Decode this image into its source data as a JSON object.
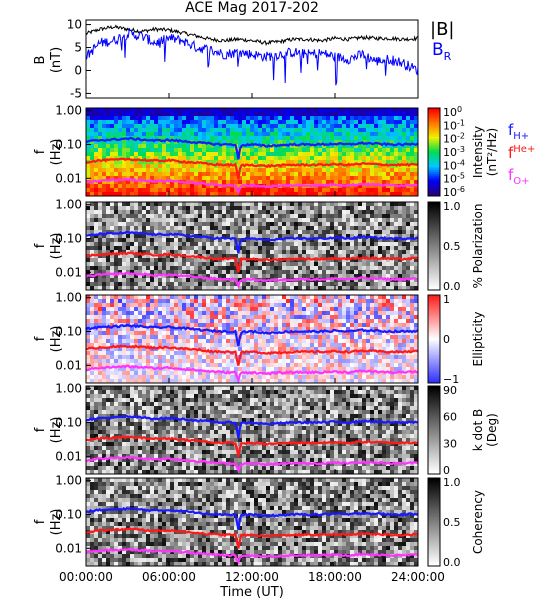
{
  "title": "ACE Mag 2017-202",
  "x_axis": {
    "label": "Time (UT)",
    "ticks": [
      "00:00:00",
      "06:00:00",
      "12:00:00",
      "18:00:00",
      "24:00:00"
    ],
    "range_hours": [
      0,
      24
    ]
  },
  "colors": {
    "fHp": "#1a1aff",
    "fHep": "#ff1a1a",
    "fOp": "#ff33ff",
    "B": "#000000",
    "BR": "#0000ff"
  },
  "freq_legend": {
    "fHp_main": "f",
    "fHp_sub": "H+",
    "fHep_main": "f",
    "fHep_sup": "He+",
    "fOp_main": "f",
    "fOp_sub": "O+"
  },
  "chart_data": [
    {
      "type": "line",
      "panel": "magnetic field",
      "ylabel": "B",
      "yunit": "(nT)",
      "ylim": [
        -6,
        11
      ],
      "yticks": [
        "10",
        "5",
        "0",
        "-5"
      ],
      "legend": {
        "B_label": "|B|",
        "BR_main": "B",
        "BR_sub": "R"
      },
      "x_hours": [
        0,
        1,
        2,
        3,
        4,
        5,
        6,
        7,
        8,
        9,
        10,
        11,
        12,
        13,
        14,
        15,
        16,
        17,
        18,
        19,
        20,
        21,
        22,
        23,
        24
      ],
      "series": [
        {
          "name": "|B|",
          "values": [
            8.0,
            9.0,
            9.5,
            9.0,
            8.5,
            9.0,
            8.8,
            8.2,
            7.5,
            6.8,
            6.5,
            6.8,
            6.5,
            6.0,
            6.3,
            6.8,
            6.8,
            6.5,
            7.0,
            6.8,
            7.2,
            7.0,
            7.0,
            6.8,
            7.0
          ]
        },
        {
          "name": "B_R",
          "values": [
            3.0,
            6.0,
            6.5,
            8.0,
            7.5,
            6.0,
            7.0,
            6.5,
            5.0,
            4.5,
            3.5,
            4.0,
            3.5,
            3.0,
            3.5,
            4.0,
            3.5,
            3.8,
            3.0,
            2.5,
            3.5,
            2.0,
            2.5,
            1.5,
            0.0
          ]
        }
      ]
    },
    {
      "type": "heatmap",
      "panel": "intensity spectrogram",
      "ylabel": "f",
      "yunit": "(Hz)",
      "yscale": "log",
      "ylim": [
        0.003,
        1.2
      ],
      "yticks": [
        "1.00",
        "0.10",
        "0.01"
      ],
      "colorbar": {
        "label": "Intensity",
        "unit": "(nT²/Hz)",
        "scale": "log",
        "ticks": [
          [
            "10",
            "0"
          ],
          [
            "10",
            "-1"
          ],
          [
            "10",
            "-2"
          ],
          [
            "10",
            "-3"
          ],
          [
            "10",
            "-4"
          ],
          [
            "10",
            "-5"
          ],
          [
            "10",
            "-6"
          ]
        ],
        "colormap": "rainbow"
      }
    },
    {
      "type": "heatmap",
      "panel": "polarization",
      "ylabel": "f",
      "yunit": "(Hz)",
      "yscale": "log",
      "ylim": [
        0.003,
        1.2
      ],
      "yticks": [
        "1.00",
        "0.10",
        "0.01"
      ],
      "colorbar": {
        "label": "% Polarization",
        "range": [
          0,
          1
        ],
        "ticks": [
          "1.0",
          "0.5",
          "0.0"
        ],
        "colormap": "gray"
      }
    },
    {
      "type": "heatmap",
      "panel": "ellipticity",
      "ylabel": "f",
      "yunit": "(Hz)",
      "yscale": "log",
      "ylim": [
        0.003,
        1.2
      ],
      "yticks": [
        "1.00",
        "0.10",
        "0.01"
      ],
      "colorbar": {
        "label": "Ellipticity",
        "range": [
          -1,
          1
        ],
        "ticks": [
          "1",
          "0",
          "−1"
        ],
        "colormap": "blue-white-red"
      }
    },
    {
      "type": "heatmap",
      "panel": "wave normal angle",
      "ylabel": "f",
      "yunit": "(Hz)",
      "yscale": "log",
      "ylim": [
        0.003,
        1.2
      ],
      "yticks": [
        "1.00",
        "0.10",
        "0.01"
      ],
      "colorbar": {
        "label": "k dot B",
        "unit": "(Deg)",
        "range": [
          0,
          90
        ],
        "ticks": [
          "90",
          "60",
          "30",
          "0"
        ],
        "colormap": "gray"
      }
    },
    {
      "type": "heatmap",
      "panel": "coherency",
      "ylabel": "f",
      "yunit": "(Hz)",
      "yscale": "log",
      "ylim": [
        0.003,
        1.2
      ],
      "yticks": [
        "1.00",
        "0.10",
        "0.01"
      ],
      "colorbar": {
        "label": "Coherency",
        "range": [
          0,
          1
        ],
        "ticks": [
          "1.0",
          "0.5",
          "0.0"
        ],
        "colormap": "gray"
      }
    }
  ],
  "gyrofrequency_lines": {
    "x_hours": [
      0,
      1,
      2,
      3,
      4,
      5,
      6,
      7,
      8,
      9,
      10,
      10.8,
      11,
      11.2,
      12,
      13,
      14,
      15,
      16,
      17,
      18,
      19,
      20,
      21,
      22,
      23,
      24
    ],
    "fHp_hz": [
      0.12,
      0.135,
      0.14,
      0.15,
      0.14,
      0.13,
      0.135,
      0.125,
      0.115,
      0.105,
      0.1,
      0.1,
      0.03,
      0.095,
      0.1,
      0.09,
      0.095,
      0.1,
      0.1,
      0.1,
      0.105,
      0.1,
      0.11,
      0.105,
      0.1,
      0.1,
      0.105
    ],
    "fHep_hz": [
      0.03,
      0.034,
      0.035,
      0.037,
      0.035,
      0.033,
      0.034,
      0.031,
      0.029,
      0.026,
      0.025,
      0.025,
      0.008,
      0.024,
      0.025,
      0.023,
      0.024,
      0.025,
      0.025,
      0.025,
      0.026,
      0.025,
      0.027,
      0.026,
      0.025,
      0.025,
      0.026
    ],
    "fOp_hz": [
      0.0075,
      0.0085,
      0.0088,
      0.0093,
      0.0088,
      0.0082,
      0.0085,
      0.0078,
      0.0072,
      0.0066,
      0.0062,
      0.0062,
      0.0035,
      0.006,
      0.0062,
      0.0057,
      0.006,
      0.0062,
      0.0062,
      0.0062,
      0.0065,
      0.0062,
      0.0068,
      0.0065,
      0.0062,
      0.0062,
      0.0065
    ]
  }
}
